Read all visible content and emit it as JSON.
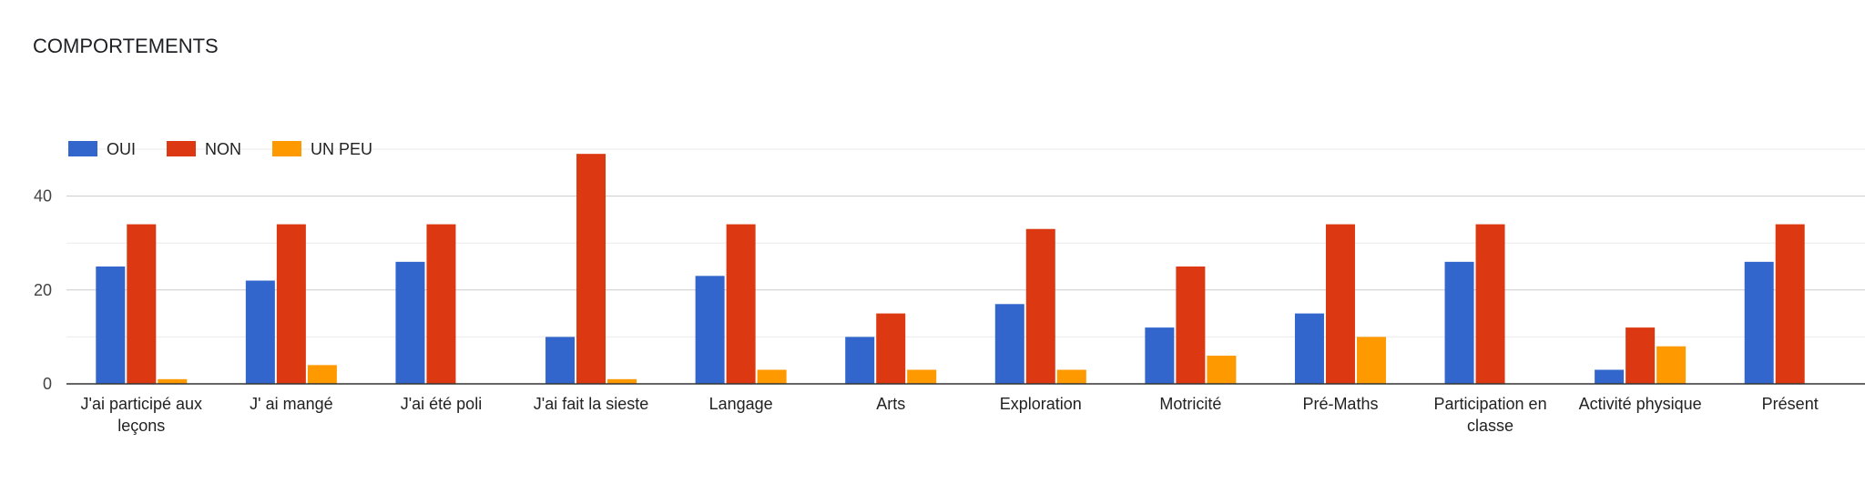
{
  "title": "COMPORTEMENTS",
  "chart_data": {
    "type": "bar",
    "title": "COMPORTEMENTS",
    "categories": [
      [
        "J'ai participé aux",
        "leçons"
      ],
      [
        "J' ai mangé"
      ],
      [
        "J'ai été poli"
      ],
      [
        "J'ai fait la sieste"
      ],
      [
        "Langage"
      ],
      [
        "Arts"
      ],
      [
        "Exploration"
      ],
      [
        "Motricité"
      ],
      [
        "Pré-Maths"
      ],
      [
        "Participation en",
        "classe"
      ],
      [
        "Activité physique"
      ],
      [
        "Présent"
      ]
    ],
    "series": [
      {
        "name": "OUI",
        "color": "#3366cc",
        "values": [
          25,
          22,
          26,
          10,
          23,
          10,
          17,
          12,
          15,
          26,
          3,
          26
        ]
      },
      {
        "name": "NON",
        "color": "#dc3912",
        "values": [
          34,
          34,
          34,
          49,
          34,
          15,
          33,
          25,
          34,
          34,
          12,
          34
        ]
      },
      {
        "name": "UN PEU",
        "color": "#ff9900",
        "values": [
          1,
          4,
          0,
          1,
          3,
          3,
          3,
          6,
          10,
          0,
          8,
          0
        ]
      }
    ],
    "ylim": [
      0,
      50
    ],
    "yticks": [
      0,
      20,
      40
    ],
    "grid": true,
    "legend": "top-left"
  }
}
